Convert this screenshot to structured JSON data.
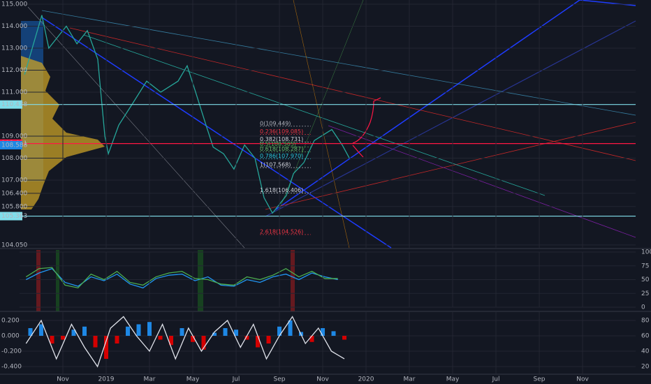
{
  "chart_data": [
    {
      "type": "line",
      "x": [
        0.23,
        1.03,
        1.35,
        2.16,
        2.65,
        3.13,
        3.61,
        3.94,
        4.1,
        4.58,
        5.23,
        5.87,
        6.52,
        7.32,
        7.74,
        8.13,
        8.61,
        8.94,
        9.42,
        9.9,
        10.39,
        10.87,
        11.29,
        11.68,
        12.32,
        12.65,
        13.13,
        13.61,
        14.42,
        14.9,
        15.23
      ],
      "series": [
        {
          "color": "#26a69a",
          "values": [
            111.8,
            114.5,
            113.0,
            114.0,
            113.2,
            113.8,
            112.5,
            109.0,
            108.2,
            109.5,
            110.5,
            111.5,
            111.0,
            111.5,
            112.2,
            111.0,
            109.5,
            108.5,
            108.2,
            107.5,
            108.6,
            108.0,
            106.2,
            105.5,
            106.3,
            107.3,
            107.8,
            108.8,
            109.3,
            108.6,
            108.0
          ]
        }
      ],
      "xlim": [
        0,
        28.45
      ],
      "ylim": [
        103.92,
        115.19
      ],
      "yticks": [
        {
          "value": 115,
          "label": "115.000"
        },
        {
          "value": 114,
          "label": "114.000"
        },
        {
          "value": 113,
          "label": "113.000"
        },
        {
          "value": 112,
          "label": "112.000"
        },
        {
          "value": 111,
          "label": "111.000"
        },
        {
          "value": 109,
          "label": "109.000"
        },
        {
          "value": 108,
          "label": "108.000"
        },
        {
          "value": 107,
          "label": "107.000"
        },
        {
          "value": 106.4,
          "label": "106.400"
        },
        {
          "value": 105.8,
          "label": "105.800"
        },
        {
          "value": 104.05,
          "label": "104.050"
        }
      ],
      "grid": true,
      "price_labels": [
        {
          "value": 110.438,
          "label": "110.438",
          "color": "#80deea",
          "line": true
        },
        {
          "value": 108.661,
          "label": "108.661",
          "color": "#ff1744",
          "line": true
        },
        {
          "value": 108.588,
          "label": "108.588",
          "color": "#1e88e5",
          "line": false
        },
        {
          "value": 105.363,
          "label": "105.363",
          "color": "#80deea",
          "line": true
        }
      ],
      "fib_levels": [
        {
          "value": 109.449,
          "label": "0(109.449)",
          "color": "#b2b5be"
        },
        {
          "value": 109.085,
          "label": "0.236(109.085)",
          "color": "#f23645"
        },
        {
          "value": 108.731,
          "label": "0.382(108.731)",
          "color": "#d1d4dc"
        },
        {
          "value": 108.505,
          "label": "0.5(108.505)",
          "color": "#4caf50"
        },
        {
          "value": 108.287,
          "label": "0.618(108.287)",
          "color": "#66bb6a"
        },
        {
          "value": 107.97,
          "label": "0.786(107.970)",
          "color": "#26c6da"
        },
        {
          "value": 107.568,
          "label": "1(107.568)",
          "color": "#d1d4dc"
        },
        {
          "value": 106.406,
          "label": "1.618(106.406)",
          "color": "#d1d4dc"
        },
        {
          "value": 104.526,
          "label": "2.618(104.526)",
          "color": "#f23645"
        }
      ]
    },
    {
      "type": "line",
      "x": [
        0.3,
        0.9,
        1.5,
        2.1,
        2.7,
        3.3,
        3.9,
        4.5,
        5.1,
        5.7,
        6.3,
        6.9,
        7.5,
        8.1,
        8.7,
        9.3,
        9.9,
        10.5,
        11.1,
        11.7,
        12.3,
        12.9,
        13.5,
        14.1,
        14.7
      ],
      "series": [
        {
          "color": "#2196f3",
          "values": [
            50,
            62,
            70,
            45,
            38,
            55,
            48,
            60,
            42,
            35,
            52,
            58,
            60,
            48,
            55,
            40,
            38,
            50,
            45,
            55,
            60,
            50,
            62,
            55,
            50
          ]
        },
        {
          "color": "#4caf50",
          "values": [
            55,
            70,
            72,
            40,
            35,
            60,
            50,
            65,
            45,
            40,
            55,
            62,
            65,
            52,
            50,
            42,
            40,
            55,
            50,
            58,
            70,
            55,
            65,
            52,
            52
          ]
        }
      ],
      "xlim": [
        0,
        28.45
      ],
      "ylim": [
        0,
        100
      ],
      "yticks": [
        0,
        25,
        50,
        75,
        100
      ]
    },
    {
      "type": "combo",
      "xlim": [
        0,
        28.45
      ],
      "xticks": [
        {
          "value": 2,
          "label": "Nov"
        },
        {
          "value": 4,
          "label": "2019"
        },
        {
          "value": 6,
          "label": "Mar"
        },
        {
          "value": 8,
          "label": "May"
        },
        {
          "value": 10,
          "label": "Jul"
        },
        {
          "value": 12,
          "label": "Sep"
        },
        {
          "value": 14,
          "label": "Nov"
        },
        {
          "value": 16,
          "label": "2020"
        },
        {
          "value": 18,
          "label": "Mar"
        },
        {
          "value": 20,
          "label": "May"
        },
        {
          "value": 22,
          "label": "Jul"
        },
        {
          "value": 24,
          "label": "Sep"
        },
        {
          "value": 26,
          "label": "Nov"
        }
      ],
      "ylim": [
        -0.491,
        0.309
      ],
      "yticks": [
        {
          "value": 0.2,
          "label": "0.200"
        },
        {
          "value": 0,
          "label": "0.000"
        },
        {
          "value": -0.2,
          "label": "-0.200"
        },
        {
          "value": -0.4,
          "label": "-0.400"
        }
      ],
      "y2lim": [
        10.9,
        90.9
      ],
      "y2ticks": [
        20,
        40,
        60,
        80
      ],
      "series": [
        {
          "type": "bar",
          "positive_color": "#1e88e5",
          "negative_color": "#d50000",
          "x": [
            0.5,
            1.0,
            1.5,
            2.0,
            2.5,
            3.0,
            3.5,
            4.0,
            4.5,
            5.0,
            5.5,
            6.0,
            6.5,
            7.0,
            7.5,
            8.0,
            8.5,
            9.0,
            9.5,
            10.0,
            10.5,
            11.0,
            11.5,
            12.0,
            12.5,
            13.0,
            13.5,
            14.0,
            14.5,
            15.0
          ],
          "values": [
            0.1,
            0.15,
            -0.1,
            -0.05,
            0.08,
            0.12,
            -0.15,
            -0.3,
            -0.1,
            0.12,
            0.15,
            0.18,
            -0.05,
            -0.12,
            0.1,
            -0.08,
            -0.18,
            0.04,
            0.1,
            0.08,
            -0.05,
            -0.15,
            -0.1,
            0.12,
            0.2,
            0.05,
            -0.08,
            0.1,
            0.06,
            -0.05
          ]
        },
        {
          "type": "line",
          "axis": "y2",
          "color": "#e0e3eb",
          "x": [
            0.3,
            1.0,
            1.7,
            2.4,
            3.0,
            3.6,
            4.2,
            4.8,
            5.4,
            6.0,
            6.6,
            7.2,
            7.8,
            8.4,
            9.0,
            9.6,
            10.2,
            10.8,
            11.4,
            12.0,
            12.6,
            13.2,
            13.8,
            14.4,
            15.0
          ],
          "values": [
            50,
            80,
            30,
            75,
            45,
            20,
            70,
            85,
            60,
            40,
            75,
            30,
            70,
            40,
            65,
            80,
            45,
            75,
            30,
            60,
            85,
            50,
            70,
            40,
            30
          ]
        }
      ]
    }
  ]
}
